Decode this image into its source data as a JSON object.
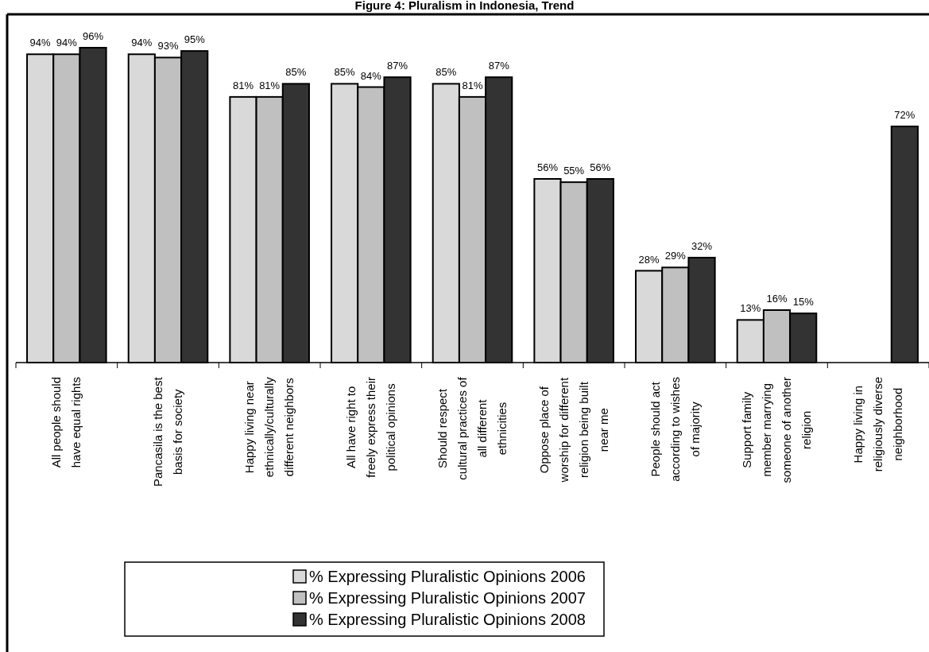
{
  "chart_data": {
    "type": "bar",
    "title": "Figure 4: Pluralism in Indonesia, Trend",
    "categories": [
      "All people should have equal rights",
      "Pancasila is the best basis for society",
      "Happy living near ethnically/culturally different neighbors",
      "All have right to freely express their political opinions",
      "Should respect cultural practices of all different ethnicities",
      "Oppose place of worship for different religion being built near me",
      "People should act according to wishes of majority",
      "Support family member marrying someone of another religion",
      "Happy living in religiously diverse neighborhood"
    ],
    "series": [
      {
        "name": "% Expressing Pluralistic Opinions 2006",
        "color": "#d9d9d9",
        "values": [
          94,
          94,
          81,
          85,
          85,
          56,
          28,
          13,
          null
        ],
        "value_labels": [
          "94%",
          "94%",
          "81%",
          "85%",
          "85%",
          "56%",
          "28%",
          "13%",
          null
        ]
      },
      {
        "name": "% Expressing Pluralistic Opinions 2007",
        "color": "#c0c0c0",
        "values": [
          94,
          93,
          81,
          84,
          81,
          55,
          29,
          16,
          null
        ],
        "value_labels": [
          "94%",
          "93%",
          "81%",
          "84%",
          "81%",
          "55%",
          "29%",
          "16%",
          null
        ]
      },
      {
        "name": "% Expressing Pluralistic Opinions 2008",
        "color": "#333333",
        "values": [
          96,
          95,
          85,
          87,
          87,
          56,
          32,
          15,
          72
        ],
        "value_labels": [
          "96%",
          "95%",
          "85%",
          "87%",
          "87%",
          "56%",
          "32%",
          "15%",
          "72%"
        ]
      }
    ],
    "legend": "bottom"
  }
}
